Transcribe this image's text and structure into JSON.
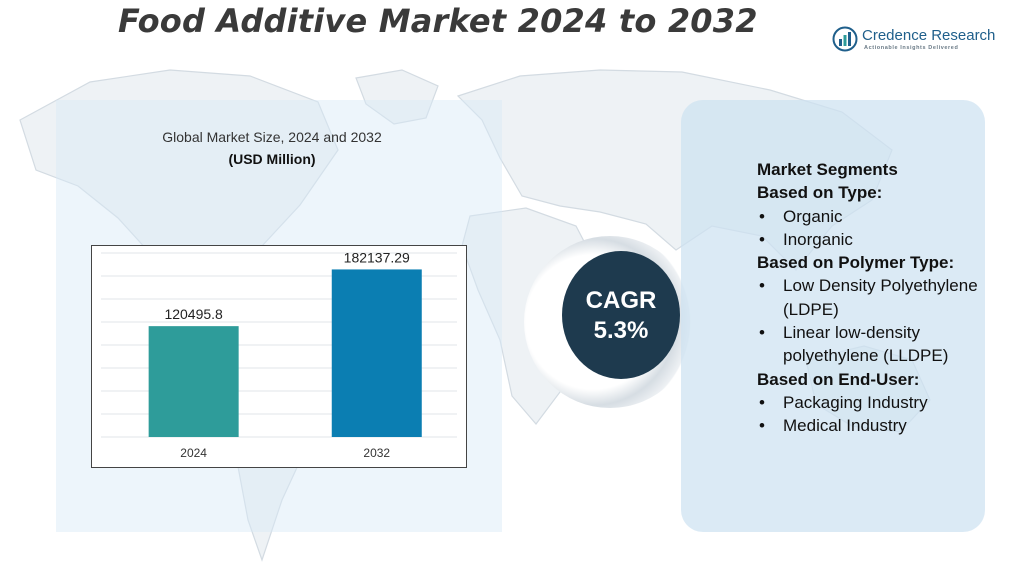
{
  "title": "Food Additive Market 2024 to 2032",
  "brand": {
    "name": "Credence Research",
    "tagline": "Actionable Insights Delivered",
    "color": "#1f5f8b"
  },
  "chart_caption": "Global Market Size, 2024 and 2032",
  "chart_unit": "(USD Million)",
  "chart_data": {
    "type": "bar",
    "title": "Global Market Size, 2024 and 2032",
    "ylabel": "(USD Million)",
    "categories": [
      "2024",
      "2032"
    ],
    "values": [
      120495.8,
      182137.29
    ],
    "value_labels": [
      "120495.8",
      "182137.29"
    ],
    "colors": [
      "#2e9c9a",
      "#0b7eb2"
    ],
    "ylim": [
      0,
      200000
    ],
    "grid": true,
    "legend": "none"
  },
  "cagr": {
    "label": "CAGR",
    "value": "5.3%"
  },
  "segments": [
    {
      "type": "heading",
      "text": "Market Segments"
    },
    {
      "type": "heading",
      "text": "Based on Type:"
    },
    {
      "type": "item",
      "text": "Organic"
    },
    {
      "type": "item",
      "text": "Inorganic"
    },
    {
      "type": "heading",
      "text": "Based on Polymer Type:"
    },
    {
      "type": "item",
      "text": "Low Density Polyethylene (LDPE)"
    },
    {
      "type": "item",
      "text": "Linear low-density polyethylene (LLDPE)"
    },
    {
      "type": "heading",
      "text": "Based on End-User:"
    },
    {
      "type": "item",
      "text": "Packaging Industry"
    },
    {
      "type": "item",
      "text": "Medical Industry"
    }
  ]
}
